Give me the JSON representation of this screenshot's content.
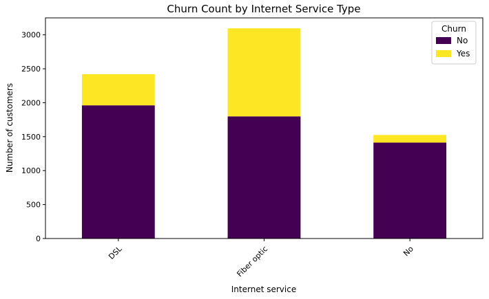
{
  "chart_data": {
    "type": "bar",
    "stacked": true,
    "title": "Churn Count by Internet Service Type",
    "xlabel": "Internet service",
    "ylabel": "Number of customers",
    "categories": [
      "DSL",
      "Fiber optic",
      "No"
    ],
    "series": [
      {
        "name": "No",
        "values": [
          1962,
          1799,
          1413
        ],
        "color": "#440154"
      },
      {
        "name": "Yes",
        "values": [
          459,
          1297,
          113
        ],
        "color": "#fde725"
      }
    ],
    "ylim": [
      0,
      3250
    ],
    "yticks": [
      0,
      500,
      1000,
      1500,
      2000,
      2500,
      3000
    ],
    "grid": false,
    "legend": {
      "title": "Churn",
      "placement": "top-right"
    }
  }
}
